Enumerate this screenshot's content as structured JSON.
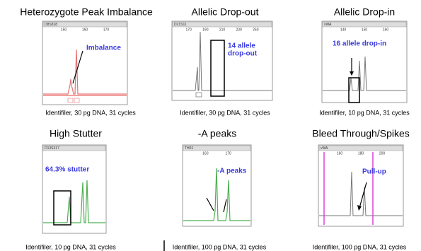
{
  "panels": [
    {
      "title": "Heterozygote Peak Imbalance",
      "marker": "D8S818",
      "ticks": [
        "150",
        "160",
        "170"
      ],
      "annotation": [
        "Imbalance"
      ],
      "caption": "Identifiler, 30 pg DNA, 31 cycles"
    },
    {
      "title": "Allelic Drop-out",
      "marker": "D21S11",
      "ticks": [
        "170",
        "190",
        "210",
        "230",
        "250"
      ],
      "annotation": [
        "14 allele",
        "drop-out"
      ],
      "caption": "Identifiler, 30 pg DNA, 31 cycles"
    },
    {
      "title": "Allelic Drop-in",
      "marker": "vWA",
      "ticks": [
        "140",
        "150",
        "160"
      ],
      "annotation": [
        "16 allele drop-in"
      ],
      "caption": "Identifiler, 10 pg DNA, 31 cycles"
    },
    {
      "title": "High Stutter",
      "marker": "D13S317",
      "ticks": [],
      "annotation": [
        "64.3% stutter"
      ],
      "caption": "Identifiler, 10 pg DNA, 31 cycles"
    },
    {
      "title": "-A peaks",
      "marker": "TH01",
      "ticks": [
        "160",
        "170"
      ],
      "annotation": [
        "-A peaks"
      ],
      "caption": "Identifiler, 100 pg DNA, 31 cycles"
    },
    {
      "title": "Bleed Through/Spikes",
      "marker": "vWA",
      "ticks": [
        "160",
        "180",
        "200"
      ],
      "annotation": [
        "Pull-up"
      ],
      "caption": "Identifiler, 100 pg DNA, 31 cycles"
    }
  ]
}
